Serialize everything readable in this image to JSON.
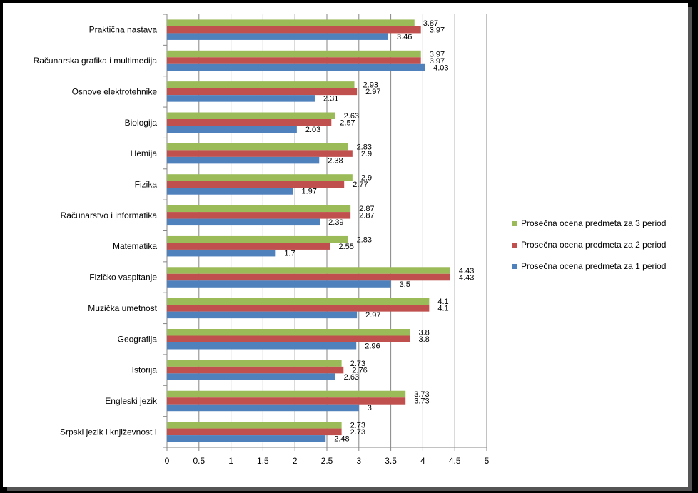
{
  "chart_data": {
    "type": "bar",
    "orientation": "horizontal",
    "categories": [
      "Praktična nastava",
      "Računarska grafika i multimedija",
      "Osnove elektrotehnike",
      "Biologija",
      "Hemija",
      "Fizika",
      "Računarstvo i informatika",
      "Matematika",
      "Fizičko vaspitanje",
      "Muzička umetnost",
      "Geografija",
      "Istorija",
      "Engleski jezik",
      "Srpski jezik i književnost I"
    ],
    "series": [
      {
        "name": "Prosečna ocena predmeta za 3 period",
        "color": "#9BBB59",
        "values": [
          3.87,
          3.97,
          2.93,
          2.63,
          2.83,
          2.9,
          2.87,
          2.83,
          4.43,
          4.1,
          3.8,
          2.73,
          3.73,
          2.73
        ],
        "labels": [
          "3.87",
          "3.97",
          "2.93",
          "2.63",
          "2.83",
          "2.9",
          "2.87",
          "2.83",
          "4.43",
          "4.1",
          "3.8",
          "2.73",
          "3.73",
          "2.73"
        ]
      },
      {
        "name": "Prosečna ocena predmeta  za 2 period",
        "color": "#C0504D",
        "values": [
          3.97,
          3.97,
          2.97,
          2.57,
          2.9,
          2.77,
          2.87,
          2.55,
          4.43,
          4.1,
          3.8,
          2.76,
          3.73,
          2.73
        ],
        "labels": [
          "3.97",
          "3.97",
          "2.97",
          "2.57",
          "2.9",
          "2.77",
          "2.87",
          "2.55",
          "4.43",
          "4.1",
          "3.8",
          "2.76",
          "3.73",
          "2.73"
        ]
      },
      {
        "name": "Prosečna ocena predmeta za 1 period",
        "color": "#4F81BD",
        "values": [
          3.46,
          4.03,
          2.31,
          2.03,
          2.38,
          1.97,
          2.39,
          1.7,
          3.5,
          2.97,
          2.96,
          2.63,
          3,
          2.48
        ],
        "labels": [
          "3.46",
          "4.03",
          "2.31",
          "2.03",
          "2.38",
          "1.97",
          "2.39",
          "1.7",
          "3.5",
          "2.97",
          "2.96",
          "2.63",
          "3",
          "2.48"
        ]
      }
    ],
    "xlim": [
      0,
      5
    ],
    "xticks": [
      "0",
      "0.5",
      "1",
      "1.5",
      "2",
      "2.5",
      "3",
      "3.5",
      "4",
      "4.5",
      "5"
    ],
    "grid": "vertical",
    "legend": "right"
  }
}
